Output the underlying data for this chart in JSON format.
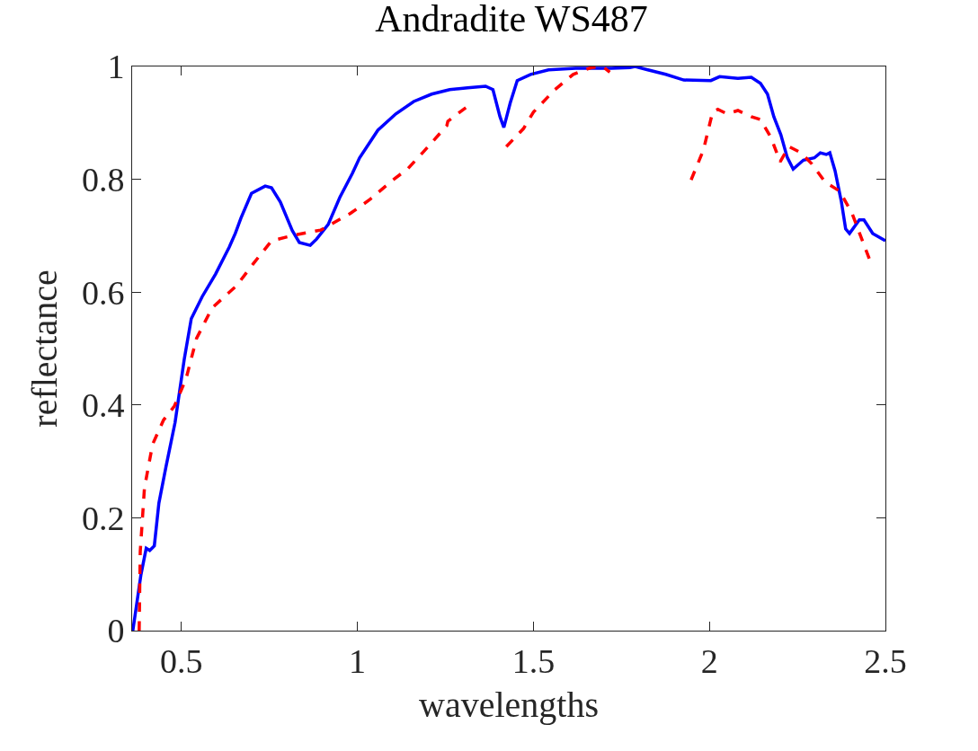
{
  "chart_data": {
    "type": "line",
    "title": "Andradite WS487",
    "xlabel": "wavelengths",
    "ylabel": "reflectance",
    "xlim": [
      0.36,
      2.5
    ],
    "ylim": [
      0,
      1
    ],
    "xticks": [
      0.5,
      1,
      1.5,
      2,
      2.5
    ],
    "yticks": [
      0,
      0.2,
      0.4,
      0.6,
      0.8,
      1
    ],
    "series": [
      {
        "color": "#0000ff",
        "line_style": "solid",
        "x": [
          0.362,
          0.385,
          0.4,
          0.41,
          0.423,
          0.436,
          0.456,
          0.482,
          0.508,
          0.528,
          0.559,
          0.597,
          0.636,
          0.653,
          0.669,
          0.699,
          0.738,
          0.756,
          0.781,
          0.815,
          0.835,
          0.866,
          0.884,
          0.917,
          0.95,
          0.986,
          1.006,
          1.058,
          1.109,
          1.16,
          1.211,
          1.262,
          1.313,
          1.364,
          1.385,
          1.405,
          1.416,
          1.434,
          1.454,
          1.492,
          1.543,
          1.62,
          1.722,
          1.774,
          1.789,
          1.825,
          1.876,
          1.927,
          2.004,
          2.029,
          2.081,
          2.119,
          2.145,
          2.165,
          2.183,
          2.203,
          2.221,
          2.238,
          2.267,
          2.298,
          2.315,
          2.332,
          2.342,
          2.357,
          2.375,
          2.387,
          2.398,
          2.426,
          2.439,
          2.464,
          2.5
        ],
        "values": [
          0,
          0.099,
          0.146,
          0.142,
          0.15,
          0.226,
          0.29,
          0.369,
          0.481,
          0.553,
          0.592,
          0.632,
          0.68,
          0.704,
          0.731,
          0.775,
          0.788,
          0.785,
          0.76,
          0.709,
          0.688,
          0.683,
          0.694,
          0.72,
          0.768,
          0.811,
          0.838,
          0.887,
          0.916,
          0.938,
          0.951,
          0.959,
          0.962,
          0.965,
          0.959,
          0.911,
          0.892,
          0.935,
          0.975,
          0.986,
          0.994,
          0.997,
          0.997,
          0.998,
          1,
          0.994,
          0.986,
          0.976,
          0.975,
          0.982,
          0.979,
          0.981,
          0.97,
          0.951,
          0.911,
          0.879,
          0.839,
          0.818,
          0.834,
          0.838,
          0.847,
          0.844,
          0.847,
          0.815,
          0.76,
          0.712,
          0.704,
          0.728,
          0.728,
          0.704,
          0.691
        ]
      },
      {
        "color": "#ff0000",
        "line_style": "dashed",
        "x": [
          0.38,
          0.383,
          0.395,
          0.418,
          0.449,
          0.48,
          0.513,
          0.543,
          0.587,
          0.656,
          0.705,
          0.756,
          0.82,
          0.896,
          0.981,
          1.035,
          1.101,
          1.142,
          1.185,
          1.254,
          1.257,
          1.308,
          1.36,
          1.423,
          1.472,
          1.5,
          1.561,
          1.613,
          1.664,
          1.697,
          1.717,
          1.83,
          1.948,
          1.983,
          2.009,
          2.024,
          2.05,
          2.081,
          2.119,
          2.145,
          2.175,
          2.201,
          2.226,
          2.26,
          2.29,
          2.329,
          2.37,
          2.405,
          2.456
        ],
        "values": [
          0,
          0.14,
          0.253,
          0.33,
          0.373,
          0.398,
          0.446,
          0.518,
          0.572,
          0.611,
          0.651,
          0.691,
          0.701,
          0.71,
          0.74,
          0.764,
          0.799,
          0.818,
          0.847,
          0.895,
          0.903,
          0.927,
          null,
          0.858,
          0.89,
          0.919,
          0.959,
          0.986,
          0.998,
          1,
          0.99,
          null,
          0.799,
          0.852,
          0.919,
          0.924,
          0.916,
          0.922,
          0.911,
          0.906,
          0.874,
          0.831,
          0.858,
          0.847,
          0.828,
          0.795,
          0.779,
          0.74,
          0.656
        ]
      }
    ]
  }
}
